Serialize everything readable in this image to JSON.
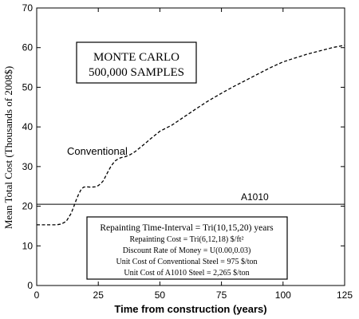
{
  "chart_data": {
    "type": "line",
    "xlabel": "Time from construction (years)",
    "ylabel": "Mean Total Cost (Thousands of 2008$)",
    "xlim": [
      0,
      125
    ],
    "ylim": [
      0,
      70
    ],
    "x_ticks": [
      "0",
      "25",
      "50",
      "75",
      "100",
      "125"
    ],
    "y_ticks": [
      "0",
      "10",
      "20",
      "30",
      "40",
      "50",
      "60",
      "70"
    ],
    "grid": false,
    "title_box": [
      "MONTE CARLO",
      "500,000 SAMPLES"
    ],
    "series": [
      {
        "name": "Conventional",
        "style": "dashed",
        "x": [
          0,
          4,
          8,
          10,
          12,
          14,
          15,
          16,
          17,
          18,
          19,
          20,
          22,
          24,
          25,
          26,
          27,
          28,
          29,
          30,
          31,
          32,
          33,
          34,
          36,
          38,
          40,
          42,
          44,
          46,
          48,
          50,
          55,
          60,
          65,
          70,
          75,
          80,
          85,
          90,
          95,
          100,
          105,
          110,
          115,
          120,
          125
        ],
        "values": [
          15.3,
          15.3,
          15.3,
          15.5,
          16.2,
          18.2,
          19.8,
          21.5,
          23.0,
          24.2,
          24.8,
          24.9,
          24.8,
          24.9,
          25.2,
          25.7,
          26.4,
          27.6,
          28.8,
          29.9,
          30.8,
          31.5,
          31.9,
          32.2,
          32.5,
          33.0,
          33.8,
          34.8,
          35.8,
          36.9,
          37.9,
          38.9,
          40.5,
          42.6,
          44.7,
          46.7,
          48.5,
          50.2,
          51.8,
          53.4,
          55.0,
          56.4,
          57.4,
          58.4,
          59.2,
          60.0,
          60.6
        ]
      },
      {
        "name": "A1010",
        "style": "solid",
        "x": [
          0,
          125
        ],
        "values": [
          20.5,
          20.5
        ]
      }
    ],
    "info_box": [
      "Repainting Time-Interval = Tri(10,15,20) years",
      "Repainting Cost = Tri(6,12,18) $/ft²",
      "Discount Rate of Money = U(0.00,0.03)",
      "Unit Cost of Conventional Steel = 975 $/ton",
      "Unit Cost of A1010 Steel = 2,265 $/ton"
    ]
  }
}
